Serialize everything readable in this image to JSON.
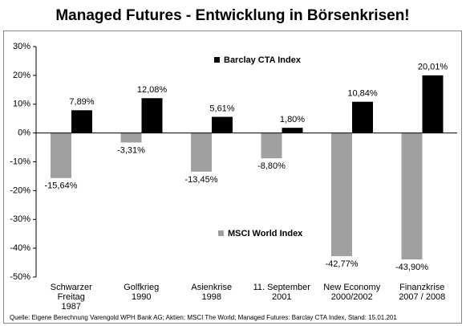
{
  "chart_data": {
    "type": "bar",
    "title": "Managed Futures - Entwicklung in Börsenkrisen!",
    "categories": [
      [
        "Schwarzer",
        "Freitag",
        "1987"
      ],
      [
        "Golfkrieg",
        "1990"
      ],
      [
        "Asienkrise",
        "1998"
      ],
      [
        "11. September",
        "2001"
      ],
      [
        "New Economy",
        "2000/2002"
      ],
      [
        "Finanzkrise",
        "2007 / 2008"
      ]
    ],
    "series": [
      {
        "name": "MSCI World Index",
        "color": "#a0a0a0",
        "values": [
          -15.64,
          -3.31,
          -13.45,
          -8.8,
          -42.77,
          -43.9
        ],
        "value_labels": [
          "-15,64%",
          "-3,31%",
          "-13,45%",
          "-8,80%",
          "-42,77%",
          "-43,90%"
        ]
      },
      {
        "name": "Barclay CTA Index",
        "color": "#000000",
        "values": [
          7.89,
          12.08,
          5.61,
          1.8,
          10.84,
          20.01
        ],
        "value_labels": [
          "7,89%",
          "12,08%",
          "5,61%",
          "1,80%",
          "10,84%",
          "20,01%"
        ]
      }
    ],
    "ylim": [
      -50,
      30
    ],
    "yticks": [
      {
        "value": -50,
        "label": "-50%"
      },
      {
        "value": -40,
        "label": "-40%"
      },
      {
        "value": -30,
        "label": "-30%"
      },
      {
        "value": -20,
        "label": "-20%"
      },
      {
        "value": -10,
        "label": "-10%"
      },
      {
        "value": 0,
        "label": "0%"
      },
      {
        "value": 10,
        "label": "10%"
      },
      {
        "value": 20,
        "label": "20%"
      },
      {
        "value": 30,
        "label": "30%"
      }
    ],
    "grid": false,
    "source": "Quelle: Eigene Berechnung Varengold WPH Bank AG; Aktien: MSCI The World; Managed Futures: Barclay CTA Index, Stand: 15.01.201"
  }
}
